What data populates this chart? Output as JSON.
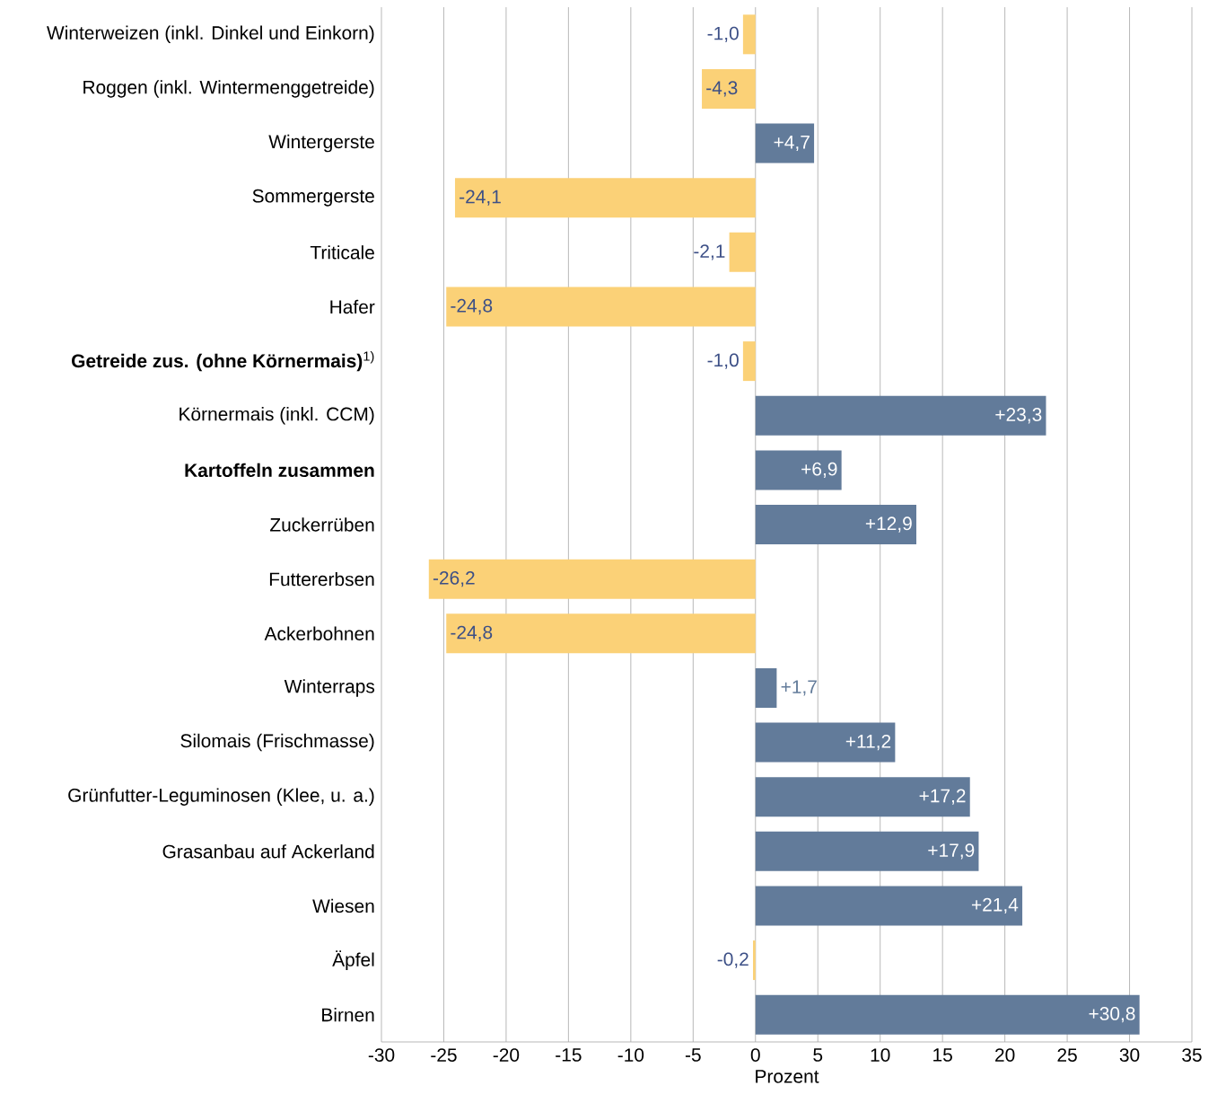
{
  "chart_data": {
    "type": "bar",
    "orientation": "horizontal",
    "xlabel": "Prozent",
    "categories": [
      "Winterweizen (inkl. Dinkel und Einkorn)",
      "Roggen (inkl. Wintermenggetreide)",
      "Wintergerste",
      "Sommergerste",
      "Triticale",
      "Hafer",
      "**Getreide zus. (ohne Körnermais)**$^{1)}$",
      "Körnermais (inkl. CCM)",
      "**Kartoffeln zusammen**",
      "Zuckerrüben",
      "Futtererbsen",
      "Ackerbohnen",
      "Winterraps",
      "Silomais (Frischmasse)",
      "Grünfutter-Leguminosen (Klee, u. a.)",
      "Grasanbau auf Ackerland",
      "Wiesen",
      "Äpfel",
      "Birnen"
    ],
    "values": [
      -1.0,
      -4.3,
      4.7,
      -24.1,
      -2.1,
      -24.8,
      -1.0,
      23.3,
      6.9,
      12.9,
      -26.2,
      -24.8,
      1.7,
      11.2,
      17.2,
      17.9,
      21.4,
      -0.2,
      30.8
    ],
    "colors": [
      "#fbd177",
      "#fbd177",
      "#627b9a",
      "#fbd177",
      "#fbd177",
      "#fbd177",
      "#fbd177",
      "#627b9a",
      "#627b9a",
      "#627b9a",
      "#fbd177",
      "#fbd177",
      "#627b9a",
      "#627b9a",
      "#627b9a",
      "#627b9a",
      "#627b9a",
      "#fbd177",
      "#627b9a"
    ],
    "value_labels": [
      "-1,0",
      "-4,3",
      "+4,7",
      "-24,1",
      "-2,1",
      "-24,8",
      "-1,0",
      "+23,3",
      "+6,9",
      "+12,9",
      "-26,2",
      "-24,8",
      "+1,7",
      "+11,2",
      "+17,2",
      "+17,9",
      "+21,4",
      "-0,2",
      "+30,8"
    ],
    "xlim": [
      -30,
      35
    ],
    "xticks": [
      -30,
      -25,
      -20,
      -15,
      -10,
      -5,
      0,
      5,
      10,
      15,
      20,
      25,
      30,
      35
    ],
    "grid": "x"
  }
}
